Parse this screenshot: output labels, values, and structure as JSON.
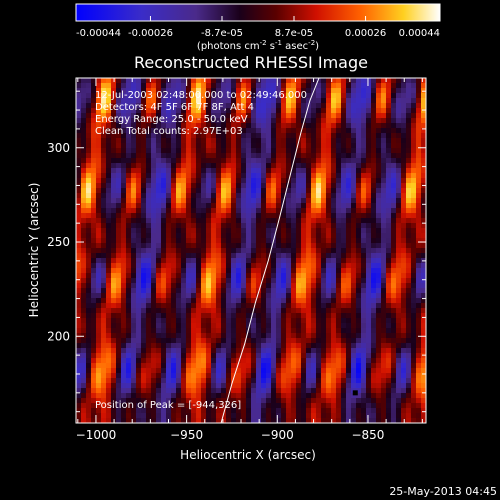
{
  "colorbar": {
    "tick_labels": [
      "-0.00044",
      "-0.00026",
      "-8.7e-05",
      "8.7e-05",
      "0.00026",
      "0.00044"
    ],
    "tick_values": [
      -0.00044,
      -0.00026,
      -8.7e-05,
      8.7e-05,
      0.00026,
      0.00044
    ],
    "range": [
      -0.00044,
      0.00044
    ],
    "units_base": "(photons cm",
    "units_exp1": "-2",
    "units_mid": " s",
    "units_exp2": "-1",
    "units_mid2": " asec",
    "units_exp3": "-2",
    "units_end": ")"
  },
  "title": "Reconstructed RHESSI Image",
  "info": {
    "line1": "12-Jul-2003 02:48:00.000 to 02:49:46.000",
    "line2": "Detectors: 4F 5F 6F 7F 8F, Att 4",
    "line3": "Energy Range: 25.0 - 50.0 keV",
    "line4": "Clean    Total counts: 2.97E+03"
  },
  "peak_text": "Position of Peak = [-944,326]",
  "timestamp": "25-May-2013 04:45",
  "colors": {
    "background": "#000000",
    "foreground": "#ffffff",
    "colormap": [
      "#0000ff",
      "#4a2a9a",
      "#100010",
      "#8b0000",
      "#ff3000",
      "#ff9000",
      "#ffff40",
      "#ffffff"
    ]
  },
  "chart_data": {
    "type": "heatmap",
    "title": "Reconstructed RHESSI Image",
    "xlabel": "Heliocentric X (arcsec)",
    "ylabel": "Heliocentric Y (arcsec)",
    "xlim": [
      -1011,
      -818
    ],
    "ylim": [
      154,
      337
    ],
    "x_ticks": [
      -1000,
      -950,
      -900,
      -850
    ],
    "y_ticks": [
      200,
      250,
      300
    ],
    "x_tick_labels": [
      "−1000",
      "−950",
      "−900",
      "−850"
    ],
    "y_tick_labels": [
      "200",
      "250",
      "300"
    ],
    "peak_position": [
      -944,
      326
    ],
    "limb_curve": {
      "x": [
        -931,
        -925,
        -918,
        -912,
        -905,
        -899,
        -893,
        -887,
        -882,
        -877
      ],
      "y": [
        154,
        175,
        196,
        218,
        240,
        262,
        285,
        308,
        325,
        337
      ]
    },
    "blank_pixel": [
      -857,
      170
    ],
    "grid": false
  }
}
